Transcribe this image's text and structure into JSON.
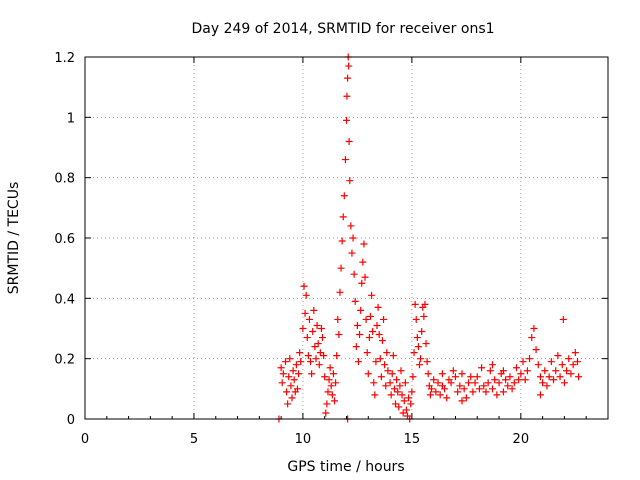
{
  "chart_data": {
    "type": "scatter",
    "title": "Day 249 of 2014, SRMTID for receiver ons1",
    "xlabel": "GPS time / hours",
    "ylabel": "SRMTID / TECUs",
    "xlim": [
      0,
      24
    ],
    "ylim": [
      0,
      1.2
    ],
    "x_ticks": [
      0,
      5,
      10,
      15,
      20
    ],
    "y_ticks": [
      0,
      0.2,
      0.4,
      0.6,
      0.8,
      1,
      1.2
    ],
    "x_tick_labels": [
      "0",
      "5",
      "10",
      "15",
      "20"
    ],
    "y_tick_labels": [
      "0",
      "0.2",
      "0.4",
      "0.6",
      "0.8",
      "1",
      "1.2"
    ],
    "grid": true,
    "marker": "+",
    "series": [
      {
        "name": "SRMTID",
        "color": "#ff0000",
        "points": [
          [
            8.9,
            0.0
          ],
          [
            9.0,
            0.17
          ],
          [
            9.05,
            0.12
          ],
          [
            9.1,
            0.15
          ],
          [
            9.2,
            0.19
          ],
          [
            9.25,
            0.09
          ],
          [
            9.3,
            0.05
          ],
          [
            9.35,
            0.14
          ],
          [
            9.4,
            0.2
          ],
          [
            9.45,
            0.11
          ],
          [
            9.5,
            0.07
          ],
          [
            9.55,
            0.16
          ],
          [
            9.6,
            0.13
          ],
          [
            9.65,
            0.09
          ],
          [
            9.7,
            0.18
          ],
          [
            9.75,
            0.1
          ],
          [
            9.8,
            0.15
          ],
          [
            9.85,
            0.22
          ],
          [
            9.9,
            0.19
          ],
          [
            10.0,
            0.3
          ],
          [
            10.05,
            0.44
          ],
          [
            10.1,
            0.35
          ],
          [
            10.15,
            0.41
          ],
          [
            10.2,
            0.27
          ],
          [
            10.25,
            0.21
          ],
          [
            10.3,
            0.33
          ],
          [
            10.35,
            0.19
          ],
          [
            10.4,
            0.15
          ],
          [
            10.45,
            0.29
          ],
          [
            10.5,
            0.36
          ],
          [
            10.55,
            0.24
          ],
          [
            10.6,
            0.2
          ],
          [
            10.65,
            0.31
          ],
          [
            10.7,
            0.25
          ],
          [
            10.75,
            0.18
          ],
          [
            10.8,
            0.22
          ],
          [
            10.85,
            0.3
          ],
          [
            10.9,
            0.27
          ],
          [
            10.95,
            0.21
          ],
          [
            11.0,
            0.14
          ],
          [
            11.05,
            0.02
          ],
          [
            11.1,
            0.05
          ],
          [
            11.15,
            0.09
          ],
          [
            11.2,
            0.13
          ],
          [
            11.25,
            0.17
          ],
          [
            11.3,
            0.11
          ],
          [
            11.35,
            0.08
          ],
          [
            11.4,
            0.15
          ],
          [
            11.45,
            0.06
          ],
          [
            11.5,
            0.12
          ],
          [
            11.55,
            0.21
          ],
          [
            11.6,
            0.33
          ],
          [
            11.65,
            0.28
          ],
          [
            11.7,
            0.42
          ],
          [
            11.75,
            0.5
          ],
          [
            11.8,
            0.59
          ],
          [
            11.85,
            0.67
          ],
          [
            11.9,
            0.74
          ],
          [
            11.95,
            0.86
          ],
          [
            12.0,
            0.99
          ],
          [
            12.02,
            1.07
          ],
          [
            12.05,
            1.13
          ],
          [
            12.08,
            1.2
          ],
          [
            12.1,
            1.17
          ],
          [
            12.12,
            0.92
          ],
          [
            12.15,
            0.79
          ],
          [
            12.2,
            0.64
          ],
          [
            12.25,
            0.55
          ],
          [
            12.3,
            0.6
          ],
          [
            12.35,
            0.48
          ],
          [
            12.4,
            0.39
          ],
          [
            12.05,
            0.0
          ],
          [
            12.45,
            0.24
          ],
          [
            12.5,
            0.31
          ],
          [
            12.55,
            0.19
          ],
          [
            12.6,
            0.28
          ],
          [
            12.65,
            0.36
          ],
          [
            12.7,
            0.45
          ],
          [
            12.75,
            0.52
          ],
          [
            12.8,
            0.58
          ],
          [
            12.85,
            0.47
          ],
          [
            12.9,
            0.33
          ],
          [
            12.95,
            0.22
          ],
          [
            13.0,
            0.15
          ],
          [
            13.05,
            0.27
          ],
          [
            13.1,
            0.34
          ],
          [
            13.15,
            0.41
          ],
          [
            13.2,
            0.29
          ],
          [
            13.25,
            0.12
          ],
          [
            13.3,
            0.08
          ],
          [
            13.35,
            0.19
          ],
          [
            13.4,
            0.31
          ],
          [
            13.45,
            0.37
          ],
          [
            13.5,
            0.28
          ],
          [
            13.55,
            0.2
          ],
          [
            13.6,
            0.14
          ],
          [
            13.65,
            0.26
          ],
          [
            13.7,
            0.33
          ],
          [
            13.75,
            0.18
          ],
          [
            13.8,
            0.11
          ],
          [
            13.85,
            0.22
          ],
          [
            13.9,
            0.16
          ],
          [
            14.0,
            0.12
          ],
          [
            14.05,
            0.08
          ],
          [
            14.1,
            0.15
          ],
          [
            14.15,
            0.21
          ],
          [
            14.2,
            0.1
          ],
          [
            14.25,
            0.05
          ],
          [
            14.3,
            0.13
          ],
          [
            14.35,
            0.09
          ],
          [
            14.4,
            0.04
          ],
          [
            14.45,
            0.11
          ],
          [
            14.5,
            0.16
          ],
          [
            14.55,
            0.08
          ],
          [
            14.6,
            0.02
          ],
          [
            14.65,
            0.06
          ],
          [
            14.7,
            0.12
          ],
          [
            14.75,
            0.03
          ],
          [
            14.8,
            0.01
          ],
          [
            14.85,
            0.07
          ],
          [
            14.9,
            0.0
          ],
          [
            14.95,
            0.05
          ],
          [
            15.0,
            0.09
          ],
          [
            15.05,
            0.14
          ],
          [
            15.1,
            0.22
          ],
          [
            15.15,
            0.38
          ],
          [
            15.2,
            0.33
          ],
          [
            15.25,
            0.27
          ],
          [
            15.3,
            0.24
          ],
          [
            15.35,
            0.18
          ],
          [
            15.4,
            0.2
          ],
          [
            15.45,
            0.29
          ],
          [
            15.5,
            0.37
          ],
          [
            15.55,
            0.34
          ],
          [
            15.6,
            0.38
          ],
          [
            15.65,
            0.25
          ],
          [
            15.7,
            0.19
          ],
          [
            15.75,
            0.15
          ],
          [
            15.8,
            0.11
          ],
          [
            15.85,
            0.08
          ],
          [
            15.9,
            0.1
          ],
          [
            16.0,
            0.13
          ],
          [
            16.1,
            0.09
          ],
          [
            16.2,
            0.12
          ],
          [
            16.3,
            0.08
          ],
          [
            16.4,
            0.11
          ],
          [
            16.5,
            0.1
          ],
          [
            16.6,
            0.07
          ],
          [
            16.7,
            0.13
          ],
          [
            16.8,
            0.12
          ],
          [
            16.9,
            0.16
          ],
          [
            17.0,
            0.14
          ],
          [
            17.1,
            0.09
          ],
          [
            17.2,
            0.11
          ],
          [
            17.3,
            0.15
          ],
          [
            17.4,
            0.1
          ],
          [
            17.5,
            0.07
          ],
          [
            17.6,
            0.12
          ],
          [
            17.7,
            0.14
          ],
          [
            17.8,
            0.09
          ],
          [
            17.9,
            0.12
          ],
          [
            18.0,
            0.14
          ],
          [
            18.1,
            0.1
          ],
          [
            18.2,
            0.17
          ],
          [
            18.3,
            0.11
          ],
          [
            18.4,
            0.09
          ],
          [
            18.5,
            0.12
          ],
          [
            18.6,
            0.16
          ],
          [
            18.7,
            0.1
          ],
          [
            18.8,
            0.13
          ],
          [
            18.9,
            0.08
          ],
          [
            19.0,
            0.12
          ],
          [
            19.1,
            0.15
          ],
          [
            19.2,
            0.09
          ],
          [
            19.3,
            0.13
          ],
          [
            19.4,
            0.11
          ],
          [
            19.5,
            0.14
          ],
          [
            19.6,
            0.1
          ],
          [
            19.7,
            0.12
          ],
          [
            19.8,
            0.17
          ],
          [
            19.9,
            0.13
          ],
          [
            20.0,
            0.15
          ],
          [
            20.1,
            0.19
          ],
          [
            20.2,
            0.13
          ],
          [
            20.3,
            0.16
          ],
          [
            20.4,
            0.2
          ],
          [
            20.5,
            0.27
          ],
          [
            20.6,
            0.3
          ],
          [
            20.7,
            0.23
          ],
          [
            20.8,
            0.18
          ],
          [
            20.9,
            0.14
          ],
          [
            21.0,
            0.12
          ],
          [
            21.1,
            0.16
          ],
          [
            21.2,
            0.11
          ],
          [
            21.3,
            0.14
          ],
          [
            21.4,
            0.19
          ],
          [
            21.5,
            0.13
          ],
          [
            21.6,
            0.16
          ],
          [
            21.7,
            0.21
          ],
          [
            21.8,
            0.14
          ],
          [
            21.9,
            0.18
          ],
          [
            22.0,
            0.12
          ],
          [
            22.1,
            0.16
          ],
          [
            22.2,
            0.2
          ],
          [
            22.3,
            0.15
          ],
          [
            22.4,
            0.18
          ],
          [
            22.5,
            0.22
          ],
          [
            22.6,
            0.19
          ],
          [
            22.65,
            0.14
          ],
          [
            21.95,
            0.33
          ],
          [
            16.4,
            0.15
          ],
          [
            18.7,
            0.18
          ],
          [
            19.2,
            0.16
          ],
          [
            17.3,
            0.06
          ],
          [
            20.9,
            0.08
          ]
        ]
      }
    ]
  }
}
